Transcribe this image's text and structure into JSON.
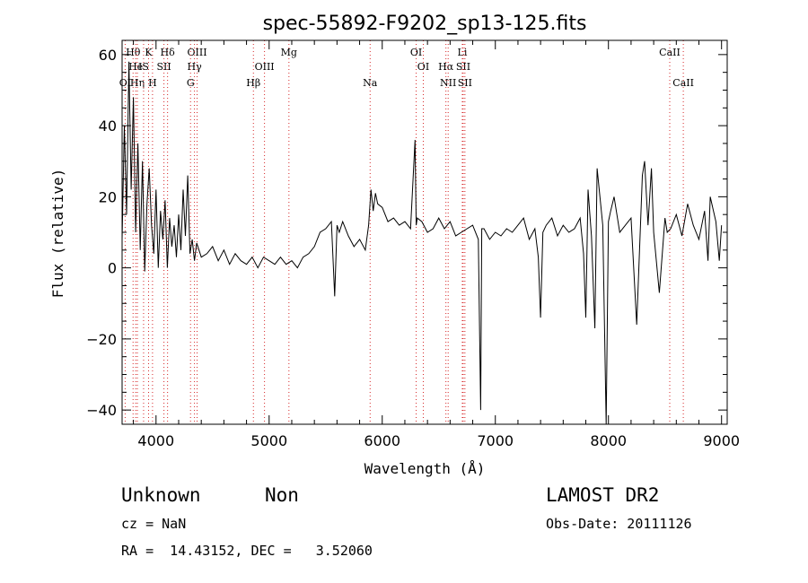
{
  "chart_data": {
    "type": "line",
    "title": "spec-55892-F9202_sp13-125.fits",
    "xlabel": "Wavelength (Å)",
    "ylabel": "Flux (relative)",
    "xlim": [
      3700,
      9050
    ],
    "ylim": [
      -44,
      64
    ],
    "xticks": [
      4000,
      5000,
      6000,
      7000,
      8000,
      9000
    ],
    "yticks": [
      -40,
      -20,
      0,
      20,
      40,
      60
    ],
    "grid": false,
    "line_color": "#000000",
    "marker_color": "#d62728",
    "marker_style": "dotted",
    "series": [
      {
        "x": [
          3700,
          3720,
          3740,
          3760,
          3780,
          3800,
          3820,
          3840,
          3860,
          3880,
          3900,
          3920,
          3940,
          3960,
          3980,
          4000,
          4020,
          4040,
          4060,
          4080,
          4100,
          4120,
          4140,
          4160,
          4180,
          4200,
          4220,
          4240,
          4260,
          4280,
          4300,
          4320,
          4340,
          4360,
          4400,
          4450,
          4500,
          4550,
          4600,
          4650,
          4700,
          4750,
          4800,
          4850,
          4900,
          4950,
          5000,
          5050,
          5100,
          5150,
          5200,
          5250,
          5300,
          5350,
          5400,
          5450,
          5500,
          5550,
          5580,
          5600,
          5620,
          5650,
          5700,
          5750,
          5800,
          5850,
          5880,
          5900,
          5920,
          5940,
          5960,
          6000,
          6050,
          6100,
          6150,
          6200,
          6250,
          6290,
          6300,
          6310,
          6350,
          6400,
          6450,
          6500,
          6550,
          6600,
          6650,
          6700,
          6750,
          6800,
          6850,
          6870,
          6880,
          6900,
          6950,
          7000,
          7050,
          7100,
          7150,
          7200,
          7250,
          7300,
          7350,
          7380,
          7400,
          7420,
          7450,
          7500,
          7550,
          7600,
          7650,
          7700,
          7750,
          7780,
          7800,
          7820,
          7850,
          7880,
          7900,
          7950,
          7980,
          8000,
          8020,
          8050,
          8100,
          8150,
          8200,
          8250,
          8300,
          8320,
          8350,
          8380,
          8400,
          8450,
          8500,
          8520,
          8550,
          8600,
          8650,
          8700,
          8750,
          8800,
          8850,
          8880,
          8900,
          8950,
          8980,
          9000
        ],
        "y": [
          8,
          40,
          15,
          58,
          22,
          48,
          10,
          35,
          5,
          30,
          -1,
          18,
          28,
          12,
          4,
          22,
          0,
          16,
          8,
          19,
          0,
          14,
          6,
          12,
          3,
          15,
          5,
          22,
          9,
          26,
          4,
          8,
          2,
          7,
          3,
          4,
          6,
          2,
          5,
          1,
          4,
          2,
          1,
          3,
          0,
          3,
          2,
          1,
          3,
          1,
          2,
          0,
          3,
          4,
          6,
          10,
          11,
          13,
          -8,
          12,
          10,
          13,
          9,
          6,
          8,
          5,
          12,
          22,
          16,
          21,
          18,
          17,
          13,
          14,
          12,
          13,
          11,
          36,
          12,
          14,
          13,
          10,
          11,
          14,
          11,
          13,
          9,
          10,
          11,
          12,
          8,
          -40,
          11,
          11,
          8,
          10,
          9,
          11,
          10,
          12,
          14,
          8,
          11,
          3,
          -14,
          10,
          12,
          14,
          9,
          12,
          10,
          11,
          14,
          4,
          -14,
          22,
          9,
          -17,
          28,
          12,
          -44,
          13,
          16,
          20,
          10,
          12,
          14,
          -16,
          26,
          30,
          12,
          28,
          10,
          -7,
          14,
          10,
          11,
          15,
          9,
          18,
          12,
          8,
          16,
          2,
          20,
          13,
          2,
          12
        ]
      }
    ],
    "line_markers": [
      {
        "name": "OI",
        "x": 3727,
        "row": 2
      },
      {
        "name": "Hθ",
        "x": 3797,
        "row": 0
      },
      {
        "name": "He",
        "x": 3820,
        "row": 1
      },
      {
        "name": "Hη",
        "x": 3835,
        "row": 2
      },
      {
        "name": "K",
        "x": 3934,
        "row": 0
      },
      {
        "name": "IS",
        "x": 3890,
        "row": 1
      },
      {
        "name": "H",
        "x": 3969,
        "row": 2
      },
      {
        "name": "SII",
        "x": 4070,
        "row": 1
      },
      {
        "name": "Hδ",
        "x": 4102,
        "row": 0
      },
      {
        "name": "OIII",
        "x": 4363,
        "row": 0
      },
      {
        "name": "Hγ",
        "x": 4340,
        "row": 1
      },
      {
        "name": "G",
        "x": 4305,
        "row": 2
      },
      {
        "name": "OIII",
        "x": 4959,
        "row": 1
      },
      {
        "name": "Hβ",
        "x": 4861,
        "row": 2
      },
      {
        "name": "Mg",
        "x": 5175,
        "row": 0
      },
      {
        "name": "Na",
        "x": 5893,
        "row": 2
      },
      {
        "name": "OI",
        "x": 6300,
        "row": 0
      },
      {
        "name": "OI",
        "x": 6363,
        "row": 1
      },
      {
        "name": "Hα",
        "x": 6563,
        "row": 1
      },
      {
        "name": "NII",
        "x": 6583,
        "row": 2
      },
      {
        "name": "Li",
        "x": 6708,
        "row": 0
      },
      {
        "name": "SII",
        "x": 6716,
        "row": 1
      },
      {
        "name": "SII",
        "x": 6731,
        "row": 2
      },
      {
        "name": "CaII",
        "x": 8542,
        "row": 0
      },
      {
        "name": "CaII",
        "x": 8662,
        "row": 2
      }
    ]
  },
  "info": {
    "class": "Unknown",
    "subclass": "Non",
    "cz": "cz = NaN",
    "coords": "RA =  14.43152, DEC =   3.52060",
    "survey": "LAMOST DR2",
    "obs_date": "Obs-Date: 20111126"
  }
}
